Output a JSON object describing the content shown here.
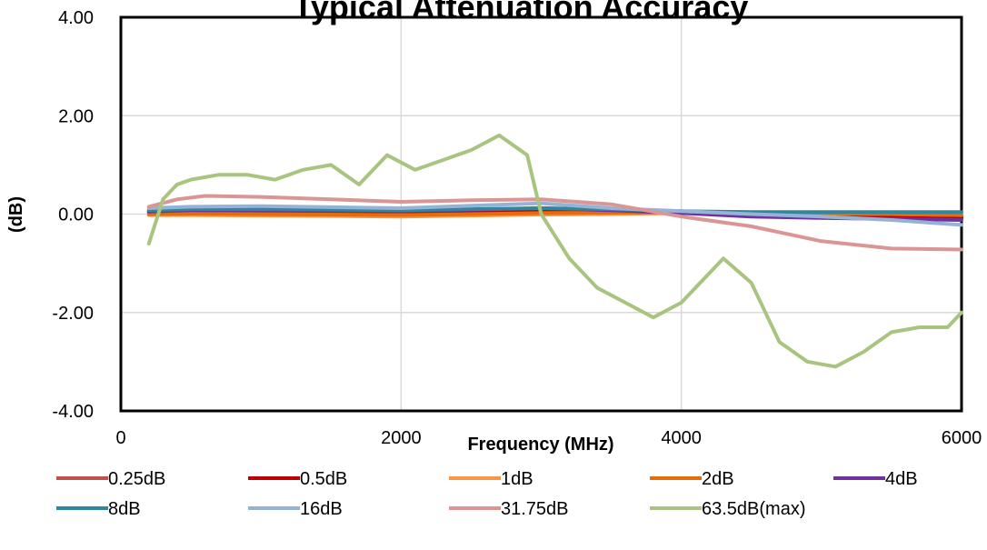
{
  "chart_data": {
    "type": "line",
    "title": "Typical Attenuation Accuracy",
    "xlabel": "Frequency (MHz)",
    "ylabel": "(dB)",
    "xlim": [
      0,
      6000
    ],
    "ylim": [
      -4,
      4
    ],
    "x_ticks": [
      "0",
      "2000",
      "4000",
      "6000"
    ],
    "y_ticks": [
      "-4.00",
      "-2.00",
      "0.00",
      "2.00",
      "4.00"
    ],
    "grid": true,
    "legend_position": "bottom",
    "series": [
      {
        "name": "0.25dB",
        "color": "#c0504d",
        "x": [
          200,
          500,
          1000,
          2000,
          3000,
          3500,
          4000,
          4500,
          5000,
          5500,
          6000
        ],
        "y": [
          0.05,
          0.07,
          0.07,
          0.05,
          0.08,
          0.07,
          0.04,
          0.02,
          0.0,
          -0.02,
          -0.05
        ]
      },
      {
        "name": "0.5dB",
        "color": "#c00000",
        "x": [
          200,
          500,
          1000,
          2000,
          3000,
          3500,
          4000,
          4500,
          5000,
          5500,
          6000
        ],
        "y": [
          0.04,
          0.06,
          0.06,
          0.05,
          0.08,
          0.06,
          0.03,
          0.01,
          -0.01,
          -0.04,
          -0.08
        ]
      },
      {
        "name": "1dB",
        "color": "#f79646",
        "x": [
          200,
          500,
          1000,
          2000,
          3000,
          3500,
          4000,
          4500,
          5000,
          5500,
          6000
        ],
        "y": [
          -0.02,
          -0.02,
          -0.03,
          -0.05,
          -0.01,
          0.0,
          0.02,
          0.02,
          0.01,
          0.0,
          -0.02
        ]
      },
      {
        "name": "2dB",
        "color": "#e46c0a",
        "x": [
          200,
          500,
          1000,
          2000,
          3000,
          3500,
          4000,
          4500,
          5000,
          5500,
          6000
        ],
        "y": [
          0.0,
          0.01,
          0.0,
          -0.02,
          0.02,
          0.03,
          0.04,
          0.03,
          0.02,
          0.0,
          -0.02
        ]
      },
      {
        "name": "4dB",
        "color": "#7030a0",
        "x": [
          200,
          500,
          1000,
          2000,
          3000,
          3500,
          4000,
          4500,
          5000,
          5500,
          6000
        ],
        "y": [
          0.05,
          0.08,
          0.08,
          0.06,
          0.12,
          0.08,
          0.02,
          -0.05,
          -0.08,
          -0.1,
          -0.12
        ]
      },
      {
        "name": "8dB",
        "color": "#31859c",
        "x": [
          200,
          500,
          1000,
          2000,
          3000,
          3500,
          4000,
          4500,
          5000,
          5500,
          6000
        ],
        "y": [
          0.08,
          0.1,
          0.1,
          0.08,
          0.12,
          0.1,
          0.06,
          0.04,
          0.04,
          0.04,
          0.04
        ]
      },
      {
        "name": "16dB",
        "color": "#95b3d7",
        "x": [
          200,
          500,
          1000,
          2000,
          3000,
          3500,
          4000,
          4500,
          5000,
          5500,
          6000
        ],
        "y": [
          0.12,
          0.15,
          0.16,
          0.12,
          0.22,
          0.12,
          0.06,
          0.0,
          -0.05,
          -0.12,
          -0.22
        ]
      },
      {
        "name": "31.75dB",
        "color": "#d99694",
        "x": [
          200,
          400,
          600,
          1000,
          1500,
          2000,
          2500,
          3000,
          3500,
          3800,
          4000,
          4500,
          5000,
          5500,
          6000
        ],
        "y": [
          0.15,
          0.3,
          0.37,
          0.35,
          0.3,
          0.25,
          0.28,
          0.3,
          0.2,
          0.05,
          -0.05,
          -0.25,
          -0.55,
          -0.7,
          -0.72
        ]
      },
      {
        "name": "63.5dB(max)",
        "color": "#a9c47f",
        "x": [
          200,
          300,
          400,
          500,
          700,
          900,
          1100,
          1300,
          1500,
          1700,
          1900,
          2100,
          2300,
          2500,
          2700,
          2900,
          3000,
          3200,
          3400,
          3600,
          3800,
          4000,
          4200,
          4300,
          4500,
          4700,
          4900,
          5100,
          5300,
          5500,
          5700,
          5900,
          6000
        ],
        "y": [
          -0.6,
          0.3,
          0.6,
          0.7,
          0.8,
          0.8,
          0.7,
          0.9,
          1.0,
          0.6,
          1.2,
          0.9,
          1.1,
          1.3,
          1.6,
          1.2,
          0.0,
          -0.9,
          -1.5,
          -1.8,
          -2.1,
          -1.8,
          -1.2,
          -0.9,
          -1.4,
          -2.6,
          -3.0,
          -3.1,
          -2.8,
          -2.4,
          -2.3,
          -2.3,
          -2.0
        ]
      }
    ]
  }
}
